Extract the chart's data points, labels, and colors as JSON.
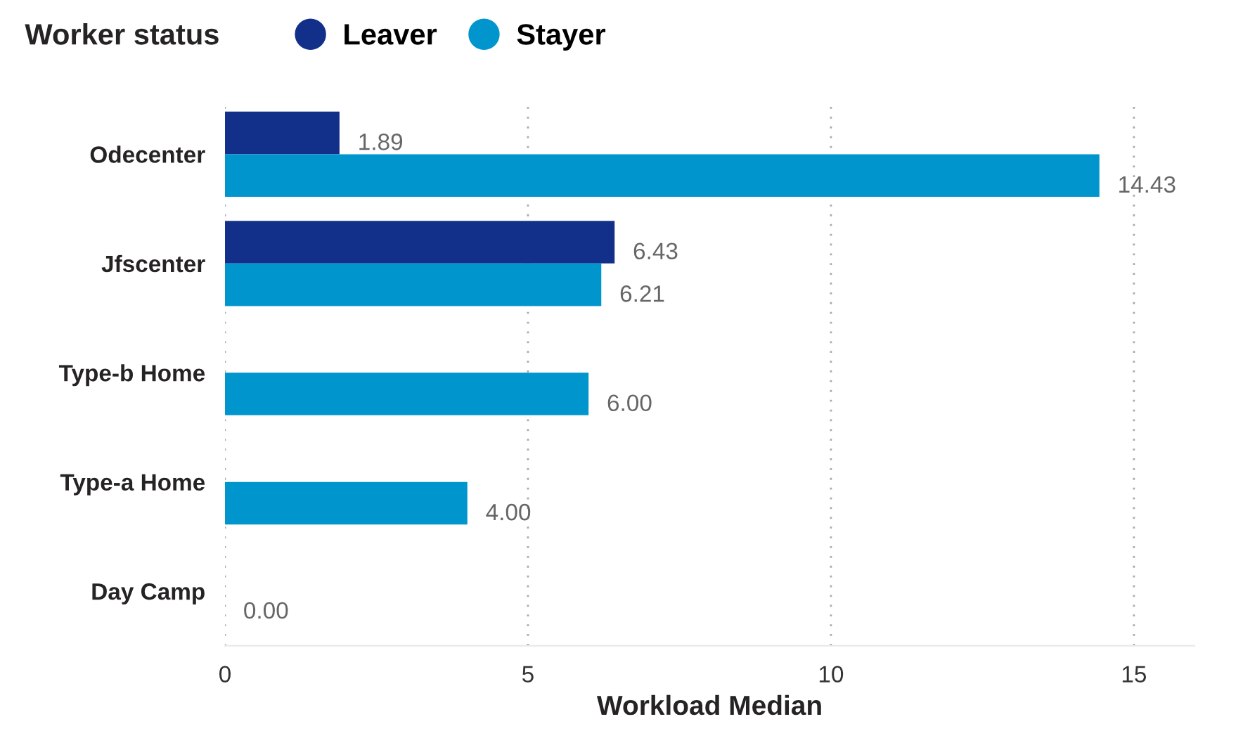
{
  "chart_data": {
    "type": "bar",
    "orientation": "horizontal",
    "legend_title": "Worker status",
    "xlabel": "Workload Median",
    "categories": [
      "Odecenter",
      "Jfscenter",
      "Type-b Home",
      "Type-a Home",
      "Day Camp"
    ],
    "series": [
      {
        "name": "Leaver",
        "color": "#12308a",
        "values": [
          1.89,
          6.43,
          null,
          null,
          null
        ],
        "value_labels": [
          "1.89",
          "6.43",
          null,
          null,
          null
        ]
      },
      {
        "name": "Stayer",
        "color": "#0095cc",
        "values": [
          14.43,
          6.21,
          6.0,
          4.0,
          0.0
        ],
        "value_labels": [
          "14.43",
          "6.21",
          "6.00",
          "4.00",
          "0.00"
        ]
      }
    ],
    "xlim": [
      0,
      16
    ],
    "xticks": [
      0,
      5,
      10,
      15
    ],
    "grid": "x",
    "legend": "top left"
  }
}
